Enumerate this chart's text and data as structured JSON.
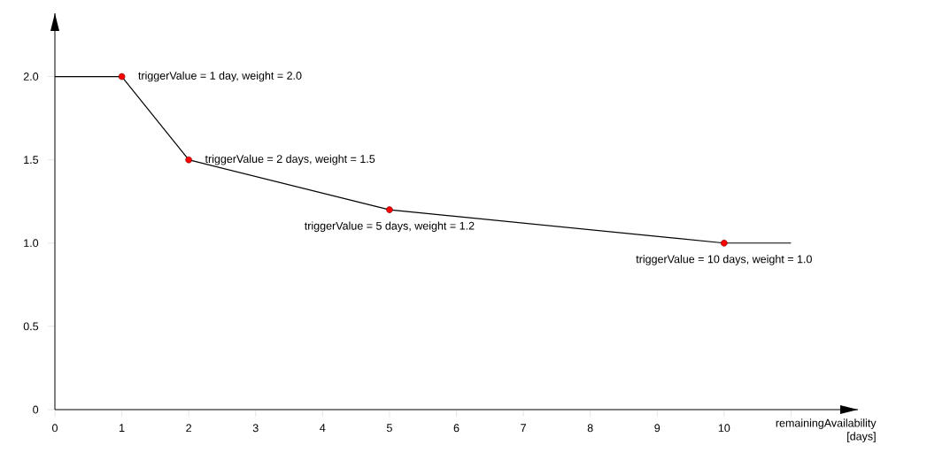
{
  "chart_data": {
    "type": "line",
    "xlabel": "remainingAvailability [days]",
    "xlim": [
      0,
      12
    ],
    "ylim": [
      0,
      2.38
    ],
    "xticks": [
      0,
      1,
      2,
      3,
      4,
      5,
      6,
      7,
      8,
      9,
      10,
      {
        "value": 11,
        "label": null
      }
    ],
    "yticks": [
      0,
      0.5,
      {
        "value": 1,
        "label": "1.0"
      },
      1.5,
      {
        "value": 2,
        "label": "2.0"
      }
    ],
    "grid": false,
    "series": [
      {
        "color": "#000000",
        "marker": "none",
        "x": [
          0,
          1,
          2,
          5,
          10,
          11
        ],
        "values": [
          2,
          2,
          1.5,
          1.2,
          1,
          1
        ]
      },
      {
        "type": "scatter",
        "marker": "circle",
        "color": "#ff0000",
        "x": [
          1,
          2,
          5,
          10
        ],
        "values": [
          2,
          1.5,
          1.2,
          1
        ]
      }
    ],
    "annotations": [
      {
        "text": "triggerValue = 1 day, weight = 2.0",
        "x": 1,
        "y": 2
      },
      {
        "text": "triggerValue = 2 days, weight = 1.5",
        "x": 2,
        "y": 1.5
      },
      {
        "text": "triggerValue = 5 days, weight = 1.2",
        "x": 5,
        "y": 1.2
      },
      {
        "text": "triggerValue = 10 days, weight = 1.0",
        "x": 10,
        "y": 1
      }
    ]
  }
}
